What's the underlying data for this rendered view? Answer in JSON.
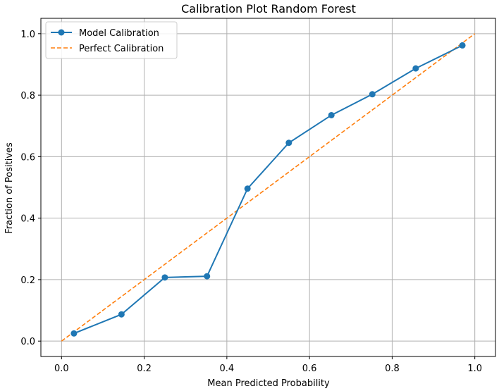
{
  "chart_data": {
    "type": "line",
    "title": "Calibration Plot Random Forest",
    "xlabel": "Mean Predicted Probability",
    "ylabel": "Fraction of Positives",
    "xlim": [
      -0.05,
      1.05
    ],
    "ylim": [
      -0.05,
      1.05
    ],
    "xticks": [
      0.0,
      0.2,
      0.4,
      0.6,
      0.8,
      1.0
    ],
    "yticks": [
      0.0,
      0.2,
      0.4,
      0.6,
      0.8,
      1.0
    ],
    "xtick_labels": [
      "0.0",
      "0.2",
      "0.4",
      "0.6",
      "0.8",
      "1.0"
    ],
    "ytick_labels": [
      "0.0",
      "0.2",
      "0.4",
      "0.6",
      "0.8",
      "1.0"
    ],
    "grid": true,
    "legend_position": "top-left",
    "series": [
      {
        "name": "Model Calibration",
        "style": "solid-line-with-markers",
        "color": "#1f77b4",
        "x": [
          0.03,
          0.145,
          0.25,
          0.352,
          0.45,
          0.55,
          0.653,
          0.752,
          0.857,
          0.97
        ],
        "y": [
          0.025,
          0.087,
          0.207,
          0.211,
          0.496,
          0.645,
          0.735,
          0.803,
          0.887,
          0.962
        ]
      },
      {
        "name": "Perfect Calibration",
        "style": "dashed-line",
        "color": "#ff7f0e",
        "x": [
          0.0,
          1.0
        ],
        "y": [
          0.0,
          1.0
        ]
      }
    ]
  }
}
